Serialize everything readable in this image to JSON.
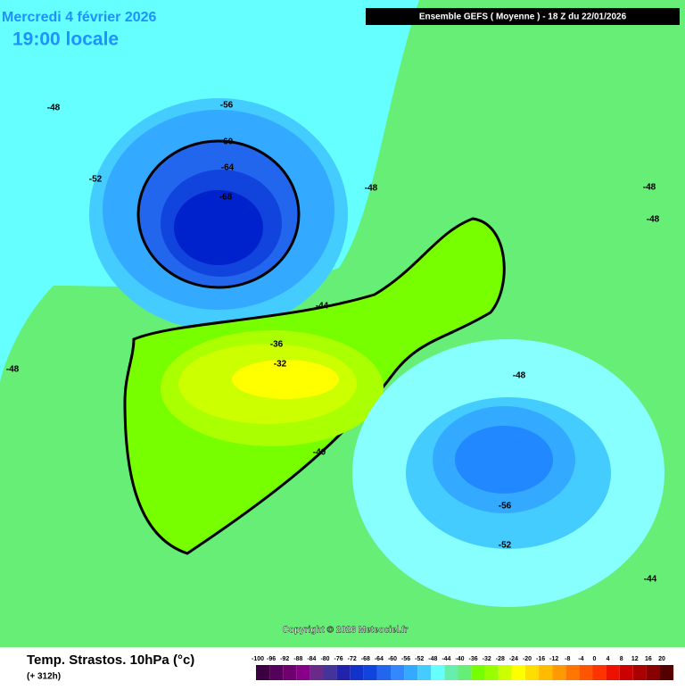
{
  "header": {
    "date": "Mercredi 4 février 2026",
    "time": "19:00 locale",
    "run": "Ensemble GEFS  ( Moyenne )  -  18 Z du 22/01/2026"
  },
  "contour_labels": [
    "-48",
    "-56",
    "-60",
    "-64",
    "-68",
    "-52",
    "-48",
    "-48",
    "-48",
    "-44",
    "-36",
    "-32",
    "-48",
    "-40",
    "-48",
    "-56",
    "-52",
    "-44"
  ],
  "copyright": "Copyright © 2026 Meteociel.fr",
  "footer": {
    "title": "Temp. Strastos. 10hPa (°c)",
    "lead": "(+ 312h)"
  },
  "legend": {
    "labels": [
      "-100",
      "-96",
      "-92",
      "-88",
      "-84",
      "-80",
      "-76",
      "-72",
      "-68",
      "-64",
      "-60",
      "-56",
      "-52",
      "-48",
      "-44",
      "-40",
      "-36",
      "-32",
      "-28",
      "-24",
      "-20",
      "-16",
      "-12",
      "-8",
      "-4",
      "0",
      "4",
      "8",
      "12",
      "16",
      "20"
    ],
    "colors": [
      "#3a0040",
      "#55005a",
      "#700070",
      "#880088",
      "#6a2a8a",
      "#443399",
      "#2222aa",
      "#1133cc",
      "#1144dd",
      "#2266ee",
      "#3388ff",
      "#33aaff",
      "#44ccff",
      "#66ffff",
      "#66eeaa",
      "#66ee77",
      "#77ff00",
      "#99ff00",
      "#ccff00",
      "#ffff00",
      "#ffdd00",
      "#ffbb00",
      "#ff9900",
      "#ff7700",
      "#ff5500",
      "#ff3300",
      "#ee1100",
      "#cc0000",
      "#aa0000",
      "#880000",
      "#550000"
    ]
  }
}
